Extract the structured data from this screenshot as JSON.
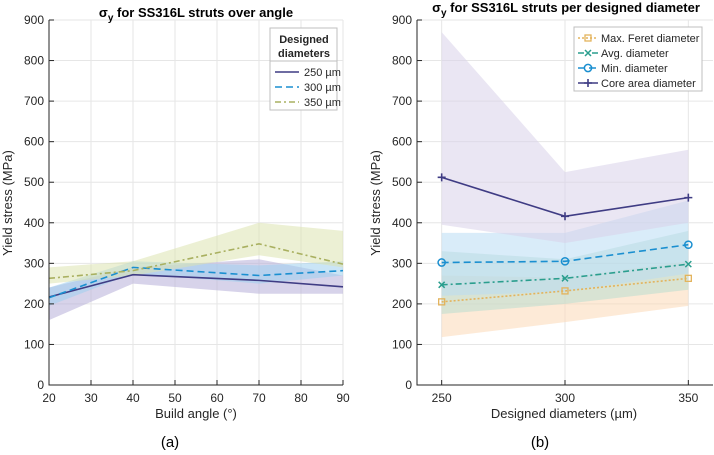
{
  "chart_data": [
    {
      "type": "line",
      "panel_label": "(a)",
      "title_symbol": "σ",
      "title_subscript": "y",
      "title_rest": " for SS316L struts over angle",
      "xlabel": "Build angle (°)",
      "ylabel": "Yield stress (MPa)",
      "xlim": [
        20,
        90
      ],
      "ylim": [
        0,
        900
      ],
      "xticks": [
        "20",
        "30",
        "40",
        "50",
        "60",
        "70",
        "80",
        "90"
      ],
      "yticks": [
        "0",
        "100",
        "200",
        "300",
        "400",
        "500",
        "600",
        "700",
        "800",
        "900"
      ],
      "legend_title_line1": "Designed",
      "legend_title_line2": "diameters",
      "legend_position": "top-right",
      "series": [
        {
          "name": "250 µm",
          "color": "#3f3c84",
          "band_color": "#b7aed8",
          "style": "solid",
          "x": [
            20,
            40,
            70,
            90
          ],
          "values": [
            217,
            272,
            258,
            242
          ],
          "lower": [
            160,
            250,
            225,
            225
          ],
          "upper": [
            240,
            290,
            310,
            270
          ]
        },
        {
          "name": "300 µm",
          "color": "#1a8fd0",
          "band_color": "#9fd0ef",
          "style": "dashed",
          "x": [
            20,
            40,
            70,
            90
          ],
          "values": [
            215,
            290,
            270,
            282
          ],
          "lower": [
            195,
            275,
            250,
            270
          ],
          "upper": [
            240,
            305,
            295,
            305
          ]
        },
        {
          "name": "350 µm",
          "color": "#a9b060",
          "band_color": "#dde3b0",
          "style": "dashdot",
          "x": [
            20,
            40,
            70,
            90
          ],
          "values": [
            263,
            282,
            348,
            298
          ],
          "lower": [
            250,
            270,
            320,
            290
          ],
          "upper": [
            290,
            305,
            400,
            380
          ]
        }
      ]
    },
    {
      "type": "line",
      "panel_label": "(b)",
      "title_symbol": "σ",
      "title_subscript": "y",
      "title_rest": " for SS316L struts per designed diameter",
      "xlabel": "Designed diameters (µm)",
      "ylabel": "Yield stress (MPa)",
      "xlim": [
        240,
        360
      ],
      "ylim": [
        0,
        900
      ],
      "xticks": [
        "250",
        "300",
        "350"
      ],
      "xtick_values": [
        250,
        300,
        350
      ],
      "yticks": [
        "0",
        "100",
        "200",
        "300",
        "400",
        "500",
        "600",
        "700",
        "800",
        "900"
      ],
      "legend_position": "top-right",
      "series": [
        {
          "name": "Max. Feret diameter",
          "color": "#e3b35c",
          "band_color": "#fbd9b7",
          "style": "dotted",
          "marker": "square",
          "x": [
            250,
            300,
            350
          ],
          "values": [
            205,
            232,
            263
          ],
          "lower": [
            118,
            155,
            195
          ],
          "upper": [
            270,
            265,
            305
          ]
        },
        {
          "name": "Avg. diameter",
          "color": "#2a9e8e",
          "band_color": "#b9dccf",
          "style": "dashdot",
          "marker": "x",
          "x": [
            250,
            300,
            350
          ],
          "values": [
            247,
            263,
            298
          ],
          "lower": [
            175,
            200,
            235
          ],
          "upper": [
            330,
            310,
            380
          ]
        },
        {
          "name": "Min. diameter",
          "color": "#1a8fd0",
          "band_color": "#b9dcf4",
          "style": "dashed",
          "marker": "circle",
          "x": [
            250,
            300,
            350
          ],
          "values": [
            302,
            305,
            346
          ],
          "lower": [
            220,
            230,
            275
          ],
          "upper": [
            375,
            375,
            455
          ]
        },
        {
          "name": "Core area diameter",
          "color": "#3f3c84",
          "band_color": "#d9d2ea",
          "style": "solid",
          "marker": "plus",
          "x": [
            250,
            300,
            350
          ],
          "values": [
            512,
            416,
            462
          ],
          "lower": [
            395,
            350,
            400
          ],
          "upper": [
            870,
            525,
            580
          ]
        }
      ]
    }
  ]
}
